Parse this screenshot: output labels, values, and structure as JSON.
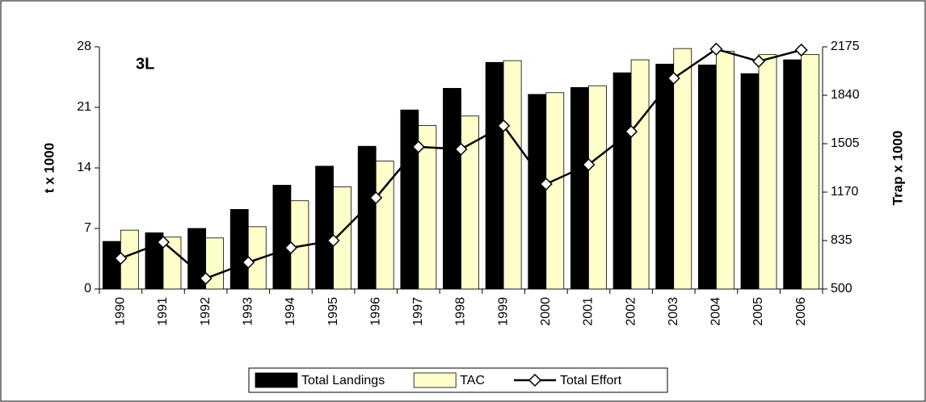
{
  "chart_data": {
    "type": "bar_line",
    "annotation": "3L",
    "ylabel": "t x 1000",
    "y2label": "Trap x 1000",
    "categories": [
      "1990",
      "1991",
      "1992",
      "1993",
      "1994",
      "1995",
      "1996",
      "1997",
      "1998",
      "1999",
      "2000",
      "2001",
      "2002",
      "2003",
      "2004",
      "2005",
      "2006"
    ],
    "series": [
      {
        "name": "Total Landings",
        "type": "bar",
        "color": "#000000",
        "values": [
          5.5,
          6.5,
          7.0,
          9.2,
          12.0,
          14.2,
          16.5,
          20.7,
          23.2,
          26.2,
          22.5,
          23.3,
          25.0,
          26.0,
          25.9,
          24.9,
          26.5
        ]
      },
      {
        "name": "TAC",
        "type": "bar",
        "color": "#ffffcc",
        "values": [
          6.8,
          6.0,
          5.9,
          7.2,
          10.2,
          11.8,
          14.8,
          18.9,
          20.0,
          26.4,
          22.7,
          23.5,
          26.5,
          27.8,
          27.5,
          27.1,
          27.1
        ]
      },
      {
        "name": "Total Effort",
        "type": "line",
        "axis": "y2",
        "color": "#000000",
        "values": [
          712,
          824,
          573,
          684,
          785,
          835,
          1131,
          1483,
          1467,
          1629,
          1226,
          1360,
          1589,
          1958,
          2159,
          2075,
          2153
        ]
      }
    ],
    "ylim": [
      0,
      28
    ],
    "yticks": [
      0,
      7,
      14,
      21,
      28
    ],
    "y2lim": [
      500,
      2175
    ],
    "y2ticks": [
      500,
      835,
      1170,
      1505,
      1840,
      2175
    ],
    "legend": "bottom"
  }
}
